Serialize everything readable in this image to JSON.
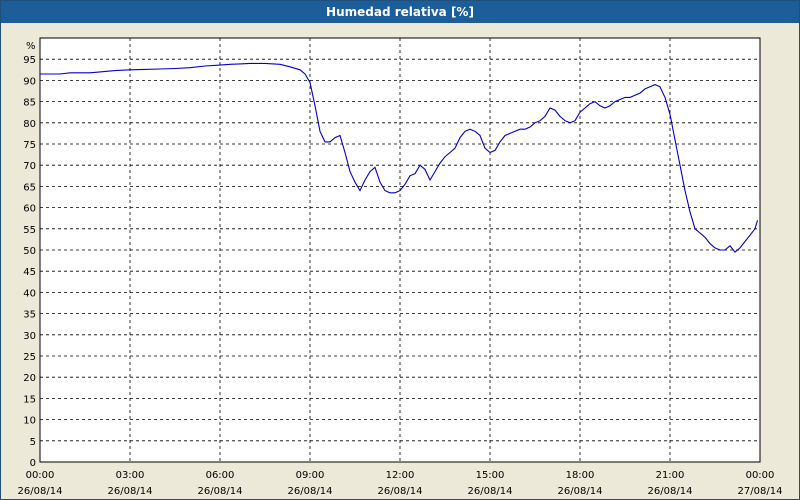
{
  "window": {
    "title": "Humedad relativa [%]"
  },
  "chart_data": {
    "type": "line",
    "title": "Humedad relativa [%]",
    "ylabel": "%",
    "xlabel": "",
    "ylim": [
      0,
      100
    ],
    "xlim": [
      "26/08/14 00:00",
      "27/08/14 00:00"
    ],
    "grid": true,
    "line_color": "#0000cc",
    "yticks": [
      0,
      5,
      10,
      15,
      20,
      25,
      30,
      35,
      40,
      45,
      50,
      55,
      60,
      65,
      70,
      75,
      80,
      85,
      90,
      95
    ],
    "xticks": [
      {
        "time": "00:00",
        "date": "26/08/14"
      },
      {
        "time": "03:00",
        "date": "26/08/14"
      },
      {
        "time": "06:00",
        "date": "26/08/14"
      },
      {
        "time": "09:00",
        "date": "26/08/14"
      },
      {
        "time": "12:00",
        "date": "26/08/14"
      },
      {
        "time": "15:00",
        "date": "26/08/14"
      },
      {
        "time": "18:00",
        "date": "26/08/14"
      },
      {
        "time": "21:00",
        "date": "26/08/14"
      },
      {
        "time": "00:00",
        "date": "27/08/14"
      }
    ],
    "series": [
      {
        "x": [
          "00:00",
          "00:40",
          "01:00",
          "01:40",
          "02:00",
          "02:30",
          "03:00",
          "03:30",
          "04:00",
          "04:30",
          "05:00",
          "05:30",
          "06:00",
          "06:20",
          "06:40",
          "07:00",
          "07:30",
          "08:00",
          "08:20",
          "08:40",
          "08:50",
          "09:00",
          "09:10",
          "09:20",
          "09:30",
          "09:40",
          "09:50",
          "10:00",
          "10:10",
          "10:20",
          "10:30",
          "10:40",
          "10:50",
          "11:00",
          "11:10",
          "11:20",
          "11:30",
          "11:40",
          "11:50",
          "12:00",
          "12:10",
          "12:20",
          "12:30",
          "12:40",
          "12:50",
          "13:00",
          "13:10",
          "13:20",
          "13:30",
          "13:40",
          "13:50",
          "14:00",
          "14:10",
          "14:20",
          "14:30",
          "14:40",
          "14:50",
          "15:00",
          "15:10",
          "15:20",
          "15:30",
          "15:40",
          "15:50",
          "16:00",
          "16:10",
          "16:20",
          "16:30",
          "16:40",
          "16:50",
          "17:00",
          "17:10",
          "17:20",
          "17:30",
          "17:40",
          "17:50",
          "18:00",
          "18:10",
          "18:20",
          "18:30",
          "18:40",
          "18:50",
          "19:00",
          "19:10",
          "19:20",
          "19:30",
          "19:40",
          "19:50",
          "20:00",
          "20:10",
          "20:20",
          "20:30",
          "20:40",
          "20:50",
          "21:00",
          "21:10",
          "21:20",
          "21:30",
          "21:40",
          "21:50",
          "22:00",
          "22:10",
          "22:20",
          "22:30",
          "22:40",
          "22:50",
          "23:00",
          "23:10",
          "23:20",
          "23:30",
          "23:40",
          "23:50",
          "23:55"
        ],
        "y": [
          91.5,
          91.5,
          91.8,
          91.8,
          92.0,
          92.3,
          92.5,
          92.6,
          92.7,
          92.8,
          93.0,
          93.4,
          93.6,
          93.8,
          93.9,
          94.0,
          94.0,
          93.8,
          93.2,
          92.5,
          91.5,
          89.5,
          84.0,
          78.0,
          75.5,
          75.5,
          76.5,
          77.0,
          73.0,
          68.5,
          66.0,
          64.0,
          66.5,
          68.5,
          69.5,
          66.0,
          64.0,
          63.5,
          63.5,
          64.0,
          65.5,
          67.5,
          68.0,
          70.0,
          69.0,
          66.5,
          68.5,
          70.5,
          72.0,
          73.0,
          74.0,
          76.5,
          78.0,
          78.5,
          78.0,
          77.0,
          74.0,
          73.0,
          73.5,
          75.5,
          77.0,
          77.5,
          78.0,
          78.5,
          78.5,
          79.0,
          80.0,
          80.5,
          81.5,
          83.5,
          83.0,
          81.5,
          80.5,
          80.0,
          80.5,
          82.5,
          83.5,
          84.5,
          85.0,
          84.0,
          83.5,
          84.0,
          85.0,
          85.5,
          86.0,
          86.0,
          86.5,
          87.0,
          88.0,
          88.5,
          89.0,
          88.5,
          86.0,
          82.0,
          76.0,
          70.0,
          64.0,
          59.0,
          55.0,
          54.0,
          53.0,
          51.5,
          50.5,
          50.0,
          50.0,
          51.0,
          49.5,
          50.5,
          52.0,
          53.5,
          55.0,
          57.0
        ]
      }
    ]
  }
}
